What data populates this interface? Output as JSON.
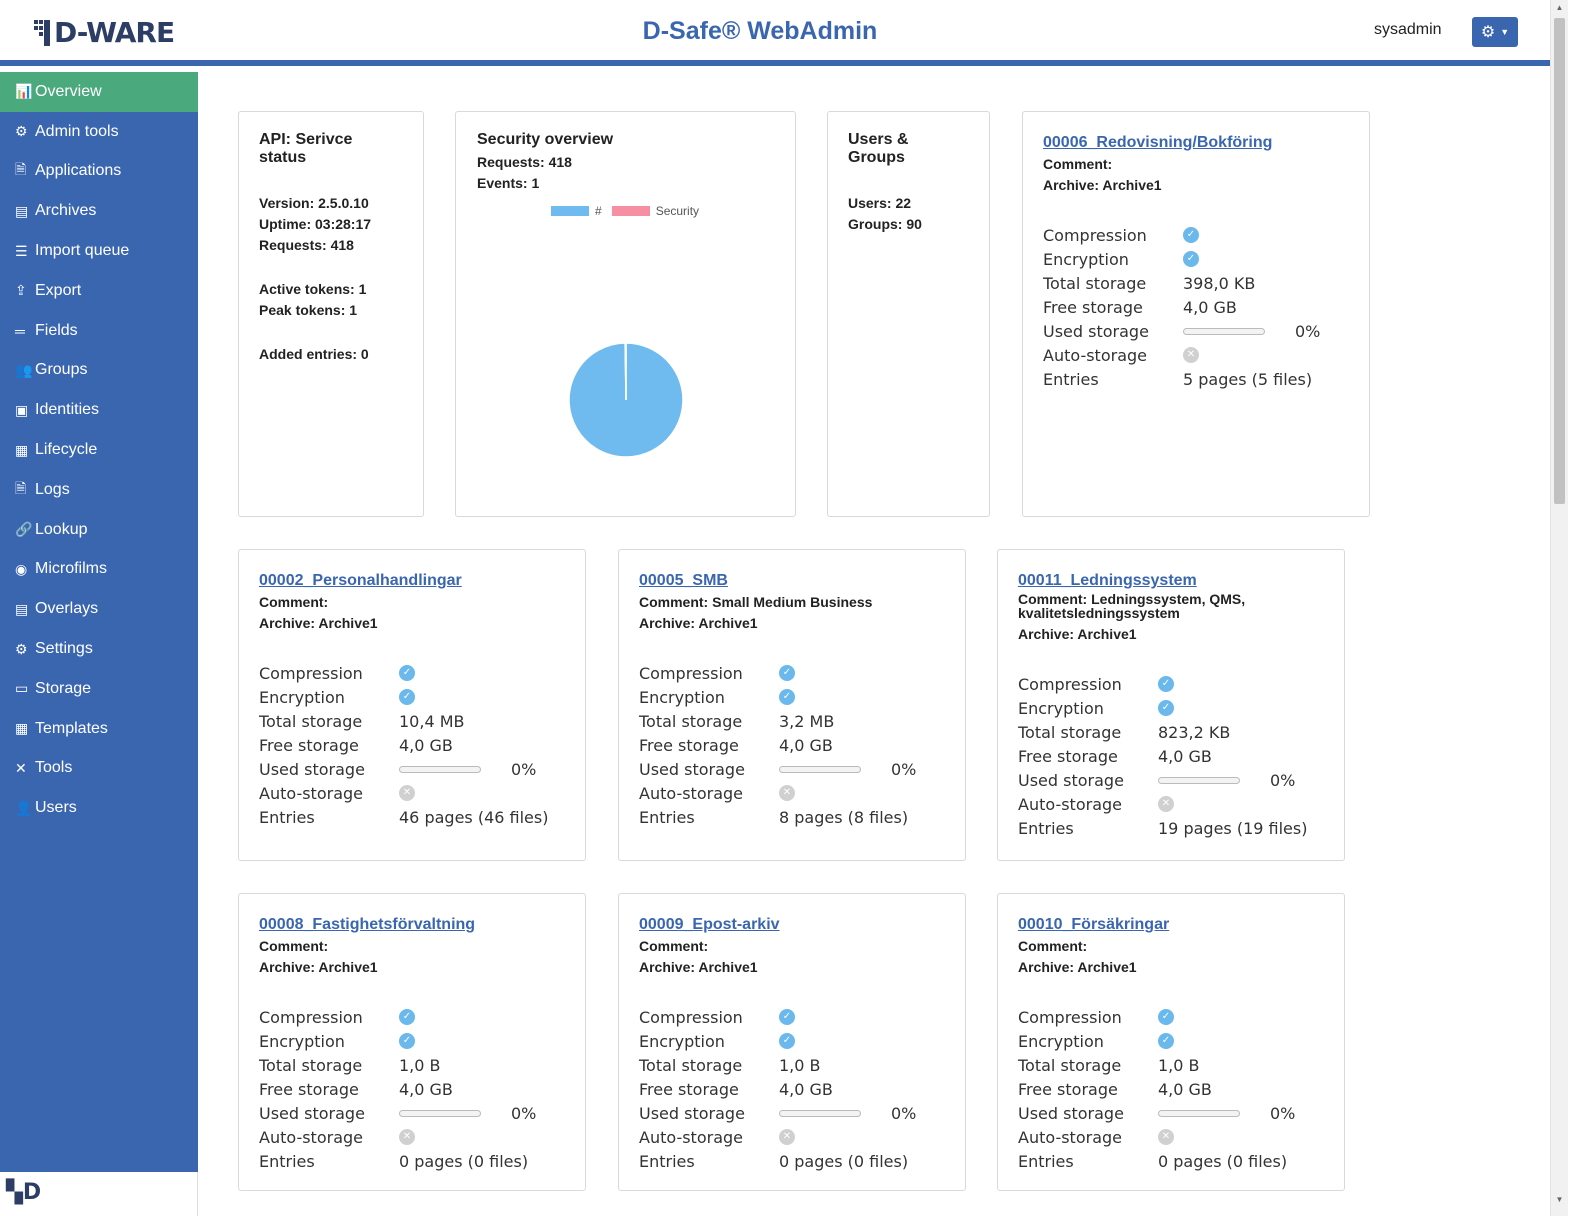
{
  "header": {
    "logo_text": "D-WARE",
    "app_title": "D-Safe® WebAdmin",
    "username": "sysadmin",
    "settings_icon": "gear-icon"
  },
  "sidebar": {
    "items": [
      {
        "label": "Overview",
        "icon": "bar-chart-icon",
        "glyph": "📊",
        "active": true
      },
      {
        "label": "Admin tools",
        "icon": "sitemap-icon",
        "glyph": "⚙",
        "active": false
      },
      {
        "label": "Applications",
        "icon": "document-icon",
        "glyph": "🗎",
        "active": false
      },
      {
        "label": "Archives",
        "icon": "archive-icon",
        "glyph": "▤",
        "active": false
      },
      {
        "label": "Import queue",
        "icon": "list-icon",
        "glyph": "☰",
        "active": false
      },
      {
        "label": "Export",
        "icon": "file-export-icon",
        "glyph": "⇪",
        "active": false
      },
      {
        "label": "Fields",
        "icon": "equals-icon",
        "glyph": "═",
        "active": false
      },
      {
        "label": "Groups",
        "icon": "users-icon",
        "glyph": "👥",
        "active": false
      },
      {
        "label": "Identities",
        "icon": "id-card-icon",
        "glyph": "▣",
        "active": false
      },
      {
        "label": "Lifecycle",
        "icon": "calendar-icon",
        "glyph": "▦",
        "active": false
      },
      {
        "label": "Logs",
        "icon": "file-text-icon",
        "glyph": "🗎",
        "active": false
      },
      {
        "label": "Lookup",
        "icon": "link-icon",
        "glyph": "🔗",
        "active": false
      },
      {
        "label": "Microfilms",
        "icon": "film-reel-icon",
        "glyph": "◉",
        "active": false
      },
      {
        "label": "Overlays",
        "icon": "newspaper-icon",
        "glyph": "▤",
        "active": false
      },
      {
        "label": "Settings",
        "icon": "user-cog-icon",
        "glyph": "⚙",
        "active": false
      },
      {
        "label": "Storage",
        "icon": "hdd-icon",
        "glyph": "▭",
        "active": false
      },
      {
        "label": "Templates",
        "icon": "table-icon",
        "glyph": "▦",
        "active": false
      },
      {
        "label": "Tools",
        "icon": "tools-icon",
        "glyph": "✕",
        "active": false
      },
      {
        "label": "Users",
        "icon": "user-icon",
        "glyph": "👤",
        "active": false
      }
    ]
  },
  "api_status": {
    "title": "API: Serivce status",
    "version": "Version: 2.5.0.10",
    "uptime": "Uptime: 03:28:17",
    "requests": "Requests: 418",
    "active_tokens": "Active tokens: 1",
    "peak_tokens": "Peak tokens: 1",
    "added_entries": "Added entries: 0"
  },
  "security": {
    "title": "Security overview",
    "requests": "Requests: 418",
    "events": "Events: 1"
  },
  "chart_data": {
    "type": "pie",
    "legend": [
      "#",
      "Security"
    ],
    "values": [
      418,
      1
    ],
    "colors": [
      "#6fbaee",
      "#f78fa3"
    ]
  },
  "users_groups": {
    "title": "Users & Groups",
    "users": "Users: 22",
    "groups": "Groups: 90"
  },
  "labels": {
    "compression": "Compression",
    "encryption": "Encryption",
    "total_storage": "Total storage",
    "free_storage": "Free storage",
    "used_storage": "Used storage",
    "auto_storage": "Auto-storage",
    "entries": "Entries",
    "comment_prefix": "Comment:",
    "archive_prefix": "Archive:"
  },
  "colors": {
    "primary": "#3a66b0",
    "active": "#4aaa7d",
    "check": "#6ab8ec"
  },
  "archives": [
    {
      "title": "00006_Redovisning/Bokföring",
      "comment": "",
      "archive": "Archive1",
      "compression": true,
      "encryption": true,
      "total": "398,0 KB",
      "free": "4,0 GB",
      "used_pct": "0%",
      "used_fraction": 0,
      "auto": false,
      "entries": "5 pages (5 files)"
    },
    {
      "title": "00002_Personalhandlingar",
      "comment": "",
      "archive": "Archive1",
      "compression": true,
      "encryption": true,
      "total": "10,4 MB",
      "free": "4,0 GB",
      "used_pct": "0%",
      "used_fraction": 0,
      "auto": false,
      "entries": "46 pages (46 files)"
    },
    {
      "title": "00005_SMB",
      "comment": "Small Medium Business",
      "archive": "Archive1",
      "compression": true,
      "encryption": true,
      "total": "3,2 MB",
      "free": "4,0 GB",
      "used_pct": "0%",
      "used_fraction": 0,
      "auto": false,
      "entries": "8 pages (8 files)"
    },
    {
      "title": "00011_Ledningssystem",
      "comment": "Ledningssystem, QMS, kvalitetsledningssystem",
      "archive": "Archive1",
      "compression": true,
      "encryption": true,
      "total": "823,2 KB",
      "free": "4,0 GB",
      "used_pct": "0%",
      "used_fraction": 0,
      "auto": false,
      "entries": "19 pages (19 files)"
    },
    {
      "title": "00008_Fastighetsförvaltning",
      "comment": "",
      "archive": "Archive1",
      "compression": true,
      "encryption": true,
      "total": "1,0 B",
      "free": "4,0 GB",
      "used_pct": "0%",
      "used_fraction": 0,
      "auto": false,
      "entries": "0 pages (0 files)"
    },
    {
      "title": "00009_Epost-arkiv",
      "comment": "",
      "archive": "Archive1",
      "compression": true,
      "encryption": true,
      "total": "1,0 B",
      "free": "4,0 GB",
      "used_pct": "0%",
      "used_fraction": 0,
      "auto": false,
      "entries": "0 pages (0 files)"
    },
    {
      "title": "00010_Försäkringar",
      "comment": "",
      "archive": "Archive1",
      "compression": true,
      "encryption": true,
      "total": "1,0 B",
      "free": "4,0 GB",
      "used_pct": "0%",
      "used_fraction": 0,
      "auto": false,
      "entries": "0 pages (0 files)"
    }
  ]
}
